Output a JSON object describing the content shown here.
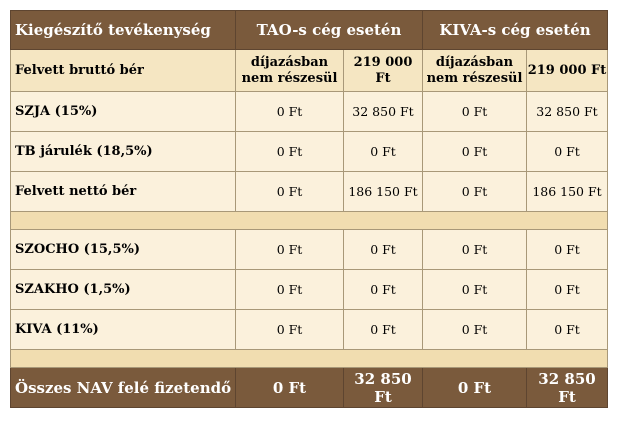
{
  "header": {
    "col0": "Kiegészítő tevékenység",
    "col_tao": "TAO-s cég esetén",
    "col_kiva": "KIVA-s cég esetén"
  },
  "subheader": {
    "label": "Felvett bruttó bér",
    "tao_a": "díjazásban nem részesül",
    "tao_b": "219 000 Ft",
    "kiva_a": "díjazásban nem részesül",
    "kiva_b": "219 000 Ft"
  },
  "rows_top": [
    {
      "label": "SZJA (15%)",
      "values": [
        "0 Ft",
        "32 850 Ft",
        "0 Ft",
        "32 850 Ft"
      ]
    },
    {
      "label": "TB járulék (18,5%)",
      "values": [
        "0 Ft",
        "0 Ft",
        "0 Ft",
        "0 Ft"
      ]
    },
    {
      "label": "Felvett nettó bér",
      "values": [
        "0 Ft",
        "186 150 Ft",
        "0 Ft",
        "186 150 Ft"
      ]
    }
  ],
  "rows_mid": [
    {
      "label": "SZOCHO (15,5%)",
      "values": [
        "0 Ft",
        "0 Ft",
        "0 Ft",
        "0 Ft"
      ]
    },
    {
      "label": "SZAKHO (1,5%)",
      "values": [
        "0 Ft",
        "0 Ft",
        "0 Ft",
        "0 Ft"
      ]
    },
    {
      "label": "KIVA (11%)",
      "values": [
        "0 Ft",
        "0 Ft",
        "0 Ft",
        "0 Ft"
      ]
    }
  ],
  "total": {
    "label": "Összes NAV felé fizetendő",
    "values": [
      "0 Ft",
      "32 850 Ft",
      "0 Ft",
      "32 850 Ft"
    ]
  }
}
